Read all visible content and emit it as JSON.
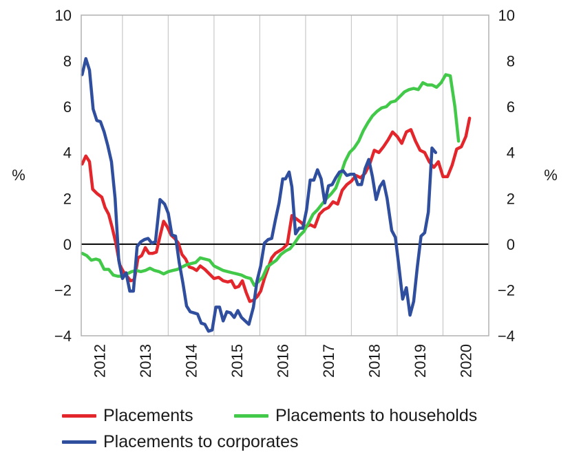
{
  "chart_data": {
    "type": "line",
    "y_unit_left": "%",
    "y_unit_right": "%",
    "ylim": [
      -4,
      10
    ],
    "yticks": [
      -4,
      -2,
      0,
      2,
      4,
      6,
      8,
      10
    ],
    "ytick_labels": [
      "−4",
      "−2",
      "0",
      "2",
      "4",
      "6",
      "8",
      "10"
    ],
    "xlim": [
      2011.6,
      2020.5
    ],
    "xtick_labels": [
      "2012",
      "2013",
      "2014",
      "2015",
      "2016",
      "2017",
      "2018",
      "2019",
      "2020"
    ],
    "grid": "vertical",
    "zero_line": true,
    "legend_position": "bottom",
    "series": [
      {
        "name": "Placements",
        "color": "#e3262b",
        "points": [
          [
            2011.62,
            3.5
          ],
          [
            2011.7,
            3.85
          ],
          [
            2011.78,
            3.6
          ],
          [
            2011.85,
            2.4
          ],
          [
            2011.95,
            2.2
          ],
          [
            2012.05,
            2.05
          ],
          [
            2012.12,
            1.6
          ],
          [
            2012.2,
            1.3
          ],
          [
            2012.28,
            0.7
          ],
          [
            2012.36,
            0.0
          ],
          [
            2012.44,
            -0.9
          ],
          [
            2012.52,
            -1.2
          ],
          [
            2012.6,
            -1.4
          ],
          [
            2012.68,
            -1.6
          ],
          [
            2012.76,
            -1.55
          ],
          [
            2012.84,
            -0.6
          ],
          [
            2012.92,
            -0.5
          ],
          [
            2013.0,
            -0.15
          ],
          [
            2013.08,
            -0.4
          ],
          [
            2013.16,
            -0.4
          ],
          [
            2013.24,
            -0.35
          ],
          [
            2013.32,
            0.35
          ],
          [
            2013.4,
            1.0
          ],
          [
            2013.48,
            0.75
          ],
          [
            2013.56,
            0.4
          ],
          [
            2013.64,
            0.25
          ],
          [
            2013.72,
            0.05
          ],
          [
            2013.8,
            -0.45
          ],
          [
            2013.88,
            -0.65
          ],
          [
            2013.96,
            -1.0
          ],
          [
            2014.04,
            -1.05
          ],
          [
            2014.12,
            -1.15
          ],
          [
            2014.2,
            -0.95
          ],
          [
            2014.3,
            -1.1
          ],
          [
            2014.4,
            -1.3
          ],
          [
            2014.5,
            -1.5
          ],
          [
            2014.6,
            -1.45
          ],
          [
            2014.7,
            -1.6
          ],
          [
            2014.8,
            -1.65
          ],
          [
            2014.88,
            -1.6
          ],
          [
            2014.96,
            -1.9
          ],
          [
            2015.04,
            -1.85
          ],
          [
            2015.12,
            -1.6
          ],
          [
            2015.2,
            -2.1
          ],
          [
            2015.28,
            -2.5
          ],
          [
            2015.36,
            -2.45
          ],
          [
            2015.44,
            -2.3
          ],
          [
            2015.52,
            -2.05
          ],
          [
            2015.6,
            -1.5
          ],
          [
            2015.68,
            -1.05
          ],
          [
            2015.76,
            -0.6
          ],
          [
            2015.84,
            -0.4
          ],
          [
            2015.92,
            -0.3
          ],
          [
            2016.0,
            -0.2
          ],
          [
            2016.1,
            0.0
          ],
          [
            2016.2,
            1.25
          ],
          [
            2016.3,
            1.1
          ],
          [
            2016.4,
            0.95
          ],
          [
            2016.5,
            0.75
          ],
          [
            2016.6,
            0.85
          ],
          [
            2016.7,
            0.75
          ],
          [
            2016.8,
            1.3
          ],
          [
            2016.9,
            1.5
          ],
          [
            2017.0,
            1.6
          ],
          [
            2017.1,
            1.85
          ],
          [
            2017.2,
            1.75
          ],
          [
            2017.3,
            2.35
          ],
          [
            2017.4,
            2.6
          ],
          [
            2017.5,
            2.75
          ],
          [
            2017.6,
            3.0
          ],
          [
            2017.7,
            2.9
          ],
          [
            2017.8,
            3.1
          ],
          [
            2017.9,
            3.5
          ],
          [
            2018.0,
            4.1
          ],
          [
            2018.1,
            4.0
          ],
          [
            2018.2,
            4.25
          ],
          [
            2018.3,
            4.55
          ],
          [
            2018.4,
            4.9
          ],
          [
            2018.5,
            4.7
          ],
          [
            2018.6,
            4.4
          ],
          [
            2018.7,
            4.9
          ],
          [
            2018.8,
            5.0
          ],
          [
            2018.9,
            4.5
          ],
          [
            2019.0,
            4.1
          ],
          [
            2019.1,
            4.0
          ],
          [
            2019.2,
            3.6
          ],
          [
            2019.3,
            3.35
          ],
          [
            2019.4,
            3.6
          ],
          [
            2019.5,
            2.95
          ],
          [
            2019.6,
            2.95
          ],
          [
            2019.7,
            3.45
          ],
          [
            2019.8,
            4.15
          ],
          [
            2019.9,
            4.25
          ],
          [
            2020.0,
            4.7
          ],
          [
            2020.08,
            5.5
          ]
        ]
      },
      {
        "name": "Placements to households",
        "color": "#43c94a",
        "points": [
          [
            2011.62,
            -0.4
          ],
          [
            2011.72,
            -0.5
          ],
          [
            2011.82,
            -0.7
          ],
          [
            2011.92,
            -0.65
          ],
          [
            2012.0,
            -0.7
          ],
          [
            2012.1,
            -1.1
          ],
          [
            2012.2,
            -1.1
          ],
          [
            2012.3,
            -1.35
          ],
          [
            2012.4,
            -1.4
          ],
          [
            2012.5,
            -1.4
          ],
          [
            2012.6,
            -1.3
          ],
          [
            2012.7,
            -1.2
          ],
          [
            2012.8,
            -1.15
          ],
          [
            2012.9,
            -1.2
          ],
          [
            2013.0,
            -1.15
          ],
          [
            2013.1,
            -1.05
          ],
          [
            2013.2,
            -1.15
          ],
          [
            2013.3,
            -1.2
          ],
          [
            2013.4,
            -1.3
          ],
          [
            2013.5,
            -1.2
          ],
          [
            2013.6,
            -1.15
          ],
          [
            2013.7,
            -1.1
          ],
          [
            2013.8,
            -1.0
          ],
          [
            2013.9,
            -0.9
          ],
          [
            2014.0,
            -0.85
          ],
          [
            2014.1,
            -0.8
          ],
          [
            2014.2,
            -0.6
          ],
          [
            2014.3,
            -0.65
          ],
          [
            2014.4,
            -0.7
          ],
          [
            2014.5,
            -0.95
          ],
          [
            2014.6,
            -1.05
          ],
          [
            2014.7,
            -1.15
          ],
          [
            2014.8,
            -1.2
          ],
          [
            2014.9,
            -1.25
          ],
          [
            2015.0,
            -1.3
          ],
          [
            2015.1,
            -1.35
          ],
          [
            2015.2,
            -1.45
          ],
          [
            2015.3,
            -1.5
          ],
          [
            2015.38,
            -1.8
          ],
          [
            2015.46,
            -1.65
          ],
          [
            2015.56,
            -1.45
          ],
          [
            2015.66,
            -1.0
          ],
          [
            2015.76,
            -0.85
          ],
          [
            2015.86,
            -0.7
          ],
          [
            2015.96,
            -0.45
          ],
          [
            2016.06,
            -0.3
          ],
          [
            2016.16,
            -0.2
          ],
          [
            2016.26,
            0.05
          ],
          [
            2016.36,
            0.35
          ],
          [
            2016.46,
            0.55
          ],
          [
            2016.56,
            0.9
          ],
          [
            2016.66,
            1.3
          ],
          [
            2016.76,
            1.5
          ],
          [
            2016.86,
            1.75
          ],
          [
            2016.96,
            2.0
          ],
          [
            2017.06,
            2.2
          ],
          [
            2017.16,
            2.45
          ],
          [
            2017.26,
            3.0
          ],
          [
            2017.36,
            3.6
          ],
          [
            2017.46,
            4.0
          ],
          [
            2017.56,
            4.2
          ],
          [
            2017.66,
            4.5
          ],
          [
            2017.76,
            4.95
          ],
          [
            2017.86,
            5.3
          ],
          [
            2017.96,
            5.6
          ],
          [
            2018.06,
            5.8
          ],
          [
            2018.16,
            5.95
          ],
          [
            2018.26,
            6.0
          ],
          [
            2018.36,
            6.2
          ],
          [
            2018.46,
            6.25
          ],
          [
            2018.56,
            6.45
          ],
          [
            2018.66,
            6.65
          ],
          [
            2018.76,
            6.75
          ],
          [
            2018.86,
            6.8
          ],
          [
            2018.96,
            6.75
          ],
          [
            2019.06,
            7.05
          ],
          [
            2019.16,
            6.95
          ],
          [
            2019.26,
            6.95
          ],
          [
            2019.36,
            6.85
          ],
          [
            2019.46,
            7.05
          ],
          [
            2019.56,
            7.4
          ],
          [
            2019.66,
            7.35
          ],
          [
            2019.76,
            6.0
          ],
          [
            2019.84,
            4.5
          ]
        ]
      },
      {
        "name": "Placements to corporates",
        "color": "#2f4e9e",
        "points": [
          [
            2011.62,
            7.4
          ],
          [
            2011.7,
            8.1
          ],
          [
            2011.78,
            7.6
          ],
          [
            2011.86,
            5.9
          ],
          [
            2011.94,
            5.4
          ],
          [
            2012.02,
            5.35
          ],
          [
            2012.1,
            4.9
          ],
          [
            2012.18,
            4.3
          ],
          [
            2012.26,
            3.6
          ],
          [
            2012.34,
            2.0
          ],
          [
            2012.42,
            -0.7
          ],
          [
            2012.5,
            -1.5
          ],
          [
            2012.58,
            -1.25
          ],
          [
            2012.66,
            -2.05
          ],
          [
            2012.74,
            -2.05
          ],
          [
            2012.82,
            -0.1
          ],
          [
            2012.9,
            0.1
          ],
          [
            2012.98,
            0.2
          ],
          [
            2013.06,
            0.25
          ],
          [
            2013.14,
            0.05
          ],
          [
            2013.22,
            0.1
          ],
          [
            2013.32,
            1.95
          ],
          [
            2013.42,
            1.75
          ],
          [
            2013.5,
            1.35
          ],
          [
            2013.58,
            0.4
          ],
          [
            2013.66,
            0.35
          ],
          [
            2013.74,
            -0.8
          ],
          [
            2013.82,
            -1.7
          ],
          [
            2013.9,
            -2.7
          ],
          [
            2013.98,
            -2.95
          ],
          [
            2014.06,
            -3.0
          ],
          [
            2014.14,
            -3.05
          ],
          [
            2014.22,
            -3.45
          ],
          [
            2014.3,
            -3.5
          ],
          [
            2014.38,
            -3.8
          ],
          [
            2014.46,
            -3.75
          ],
          [
            2014.54,
            -2.75
          ],
          [
            2014.62,
            -2.75
          ],
          [
            2014.7,
            -3.35
          ],
          [
            2014.78,
            -2.95
          ],
          [
            2014.86,
            -3.0
          ],
          [
            2014.94,
            -3.2
          ],
          [
            2015.02,
            -2.9
          ],
          [
            2015.1,
            -3.2
          ],
          [
            2015.18,
            -3.35
          ],
          [
            2015.26,
            -3.5
          ],
          [
            2015.36,
            -2.75
          ],
          [
            2015.44,
            -1.6
          ],
          [
            2015.52,
            -0.95
          ],
          [
            2015.6,
            0.05
          ],
          [
            2015.68,
            0.2
          ],
          [
            2015.76,
            0.25
          ],
          [
            2015.84,
            1.05
          ],
          [
            2015.92,
            1.8
          ],
          [
            2016.0,
            2.85
          ],
          [
            2016.06,
            2.85
          ],
          [
            2016.14,
            3.15
          ],
          [
            2016.2,
            2.5
          ],
          [
            2016.28,
            0.45
          ],
          [
            2016.36,
            0.7
          ],
          [
            2016.44,
            0.7
          ],
          [
            2016.52,
            1.5
          ],
          [
            2016.6,
            2.8
          ],
          [
            2016.68,
            2.8
          ],
          [
            2016.76,
            3.25
          ],
          [
            2016.84,
            2.85
          ],
          [
            2016.92,
            1.8
          ],
          [
            2017.0,
            2.55
          ],
          [
            2017.08,
            2.6
          ],
          [
            2017.16,
            2.9
          ],
          [
            2017.24,
            3.15
          ],
          [
            2017.32,
            3.2
          ],
          [
            2017.4,
            3.0
          ],
          [
            2017.48,
            3.05
          ],
          [
            2017.56,
            3.05
          ],
          [
            2017.64,
            2.6
          ],
          [
            2017.72,
            2.6
          ],
          [
            2017.8,
            3.3
          ],
          [
            2017.88,
            3.7
          ],
          [
            2017.96,
            2.95
          ],
          [
            2018.04,
            1.95
          ],
          [
            2018.12,
            2.5
          ],
          [
            2018.2,
            2.75
          ],
          [
            2018.28,
            2.0
          ],
          [
            2018.38,
            0.6
          ],
          [
            2018.46,
            0.3
          ],
          [
            2018.54,
            -1.0
          ],
          [
            2018.62,
            -2.4
          ],
          [
            2018.7,
            -1.9
          ],
          [
            2018.78,
            -3.1
          ],
          [
            2018.86,
            -2.5
          ],
          [
            2018.94,
            -1.0
          ],
          [
            2019.02,
            0.35
          ],
          [
            2019.1,
            0.5
          ],
          [
            2019.18,
            1.4
          ],
          [
            2019.26,
            4.2
          ],
          [
            2019.34,
            4.0
          ]
        ]
      }
    ]
  }
}
